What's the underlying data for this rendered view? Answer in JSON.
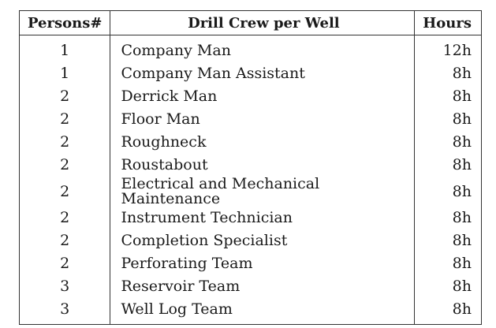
{
  "table": {
    "headers": {
      "persons": "Persons#",
      "role": "Drill Crew per Well",
      "hours": "Hours"
    },
    "rows": [
      {
        "persons": "1",
        "role": "Company Man",
        "hours": "12h"
      },
      {
        "persons": "1",
        "role": "Company Man Assistant",
        "hours": "8h"
      },
      {
        "persons": "2",
        "role": "Derrick Man",
        "hours": "8h"
      },
      {
        "persons": "2",
        "role": "Floor Man",
        "hours": "8h"
      },
      {
        "persons": "2",
        "role": "Roughneck",
        "hours": "8h"
      },
      {
        "persons": "2",
        "role": "Roustabout",
        "hours": "8h"
      },
      {
        "persons": "2",
        "role": "Electrical and Mechanical Maintenance",
        "hours": "8h"
      },
      {
        "persons": "2",
        "role": "Instrument Technician",
        "hours": "8h"
      },
      {
        "persons": "2",
        "role": "Completion Specialist",
        "hours": "8h"
      },
      {
        "persons": "2",
        "role": "Perforating Team",
        "hours": "8h"
      },
      {
        "persons": "3",
        "role": "Reservoir Team",
        "hours": "8h"
      },
      {
        "persons": "3",
        "role": "Well Log Team",
        "hours": "8h"
      }
    ]
  }
}
